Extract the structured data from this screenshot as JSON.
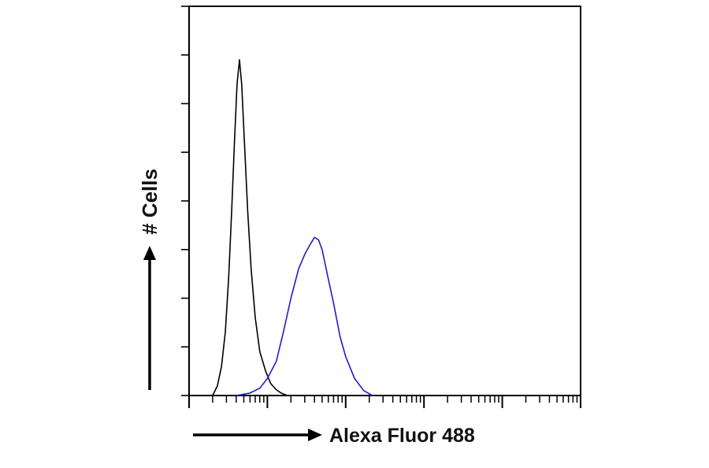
{
  "chart_data": {
    "type": "line",
    "xlabel": "Alexa Fluor 488",
    "ylabel": "# Cells",
    "x_scale": "log",
    "xlim": [
      1,
      100000
    ],
    "ylim": [
      0,
      8
    ],
    "grid": false,
    "series": [
      {
        "color": "#000000",
        "points": [
          [
            2,
            0
          ],
          [
            2.3,
            0.2
          ],
          [
            2.6,
            0.6
          ],
          [
            2.9,
            1.3
          ],
          [
            3.2,
            2.4
          ],
          [
            3.5,
            3.8
          ],
          [
            3.8,
            5.2
          ],
          [
            4.1,
            6.4
          ],
          [
            4.4,
            6.9
          ],
          [
            4.7,
            6.4
          ],
          [
            5.1,
            5.2
          ],
          [
            5.6,
            3.8
          ],
          [
            6.2,
            2.6
          ],
          [
            7,
            1.6
          ],
          [
            8,
            0.9
          ],
          [
            9.5,
            0.5
          ],
          [
            11,
            0.25
          ],
          [
            13,
            0.12
          ],
          [
            15,
            0.05
          ],
          [
            18,
            0
          ]
        ]
      },
      {
        "color": "#1f1fc7",
        "points": [
          [
            4,
            0
          ],
          [
            6,
            0.05
          ],
          [
            8,
            0.15
          ],
          [
            10,
            0.35
          ],
          [
            13,
            0.7
          ],
          [
            16,
            1.3
          ],
          [
            20,
            2
          ],
          [
            25,
            2.6
          ],
          [
            30,
            2.9
          ],
          [
            35,
            3.1
          ],
          [
            40,
            3.25
          ],
          [
            45,
            3.2
          ],
          [
            50,
            3
          ],
          [
            60,
            2.4
          ],
          [
            70,
            1.9
          ],
          [
            85,
            1.2
          ],
          [
            100,
            0.8
          ],
          [
            130,
            0.35
          ],
          [
            170,
            0.1
          ],
          [
            220,
            0
          ]
        ]
      }
    ]
  }
}
